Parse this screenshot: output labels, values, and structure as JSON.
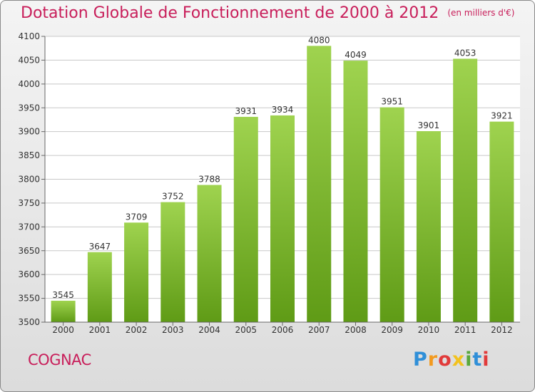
{
  "title": "Dotation Globale de Fonctionnement de 2000 à 2012",
  "unit_note": "(en milliers d'€)",
  "city": "COGNAC",
  "logo_text": "Proxiti",
  "colors": {
    "title": "#c81e5a",
    "bar_top": "#9fd34f",
    "bar_bottom": "#5f9b16",
    "grid": "#c8c8c8",
    "plot_bg": "#ffffff"
  },
  "chart_data": {
    "type": "bar",
    "title": "Dotation Globale de Fonctionnement de 2000 à 2012",
    "subtitle": "(en milliers d'€)",
    "categories": [
      "2000",
      "2001",
      "2002",
      "2003",
      "2004",
      "2005",
      "2006",
      "2007",
      "2008",
      "2009",
      "2010",
      "2011",
      "2012"
    ],
    "values": [
      3545,
      3647,
      3709,
      3752,
      3788,
      3931,
      3934,
      4080,
      4049,
      3951,
      3901,
      4053,
      3921
    ],
    "ylim": [
      3500,
      4100
    ],
    "yticks": [
      3500,
      3550,
      3600,
      3650,
      3700,
      3750,
      3800,
      3850,
      3900,
      3950,
      4000,
      4050,
      4100
    ],
    "xlabel": "",
    "ylabel": "",
    "grid": true,
    "data_labels": true
  }
}
